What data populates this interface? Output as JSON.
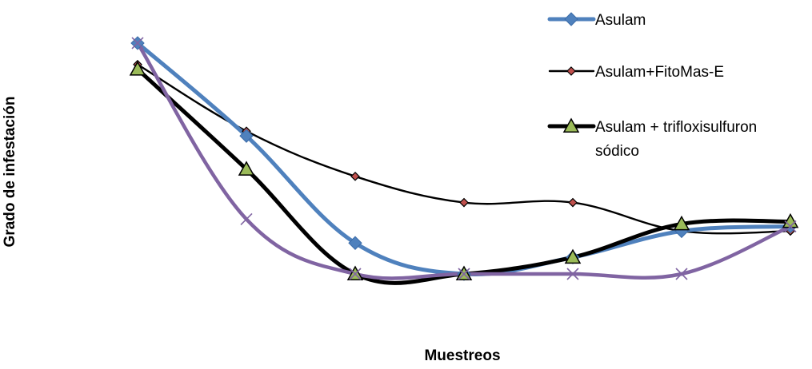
{
  "chart_data": {
    "type": "line",
    "title": "",
    "xlabel": "Muestreos",
    "ylabel": "Grado de infestación",
    "x": [
      1,
      2,
      3,
      4,
      5,
      6,
      7
    ],
    "ylim": [
      0,
      1
    ],
    "grid": false,
    "legend_position": "top-right",
    "series": [
      {
        "name": "Asulam",
        "values": [
          0.97,
          0.58,
          0.13,
          0.0,
          0.07,
          0.18,
          0.2
        ],
        "color": "#4F81BD",
        "marker": "diamond"
      },
      {
        "name": "Asulam+FitoMas-E",
        "values": [
          0.88,
          0.6,
          0.41,
          0.3,
          0.3,
          0.18,
          0.18
        ],
        "color": "#000000",
        "marker_fill": "#C0504D",
        "marker": "diamond-small"
      },
      {
        "name": "",
        "values": [
          0.86,
          0.44,
          0.0,
          0.0,
          0.07,
          0.21,
          0.22
        ],
        "color": "#000000",
        "marker_fill": "#9BBB59",
        "marker": "triangle"
      },
      {
        "name": "",
        "values": [
          0.97,
          0.23,
          0.0,
          0.0,
          0.0,
          0.0,
          0.2
        ],
        "color": "#8064A2",
        "marker": "x"
      }
    ],
    "legend": [
      {
        "series": 0,
        "label_lines": [
          "Asulam"
        ]
      },
      {
        "series": 1,
        "label_lines": [
          "Asulam+FitoMas-E"
        ]
      },
      {
        "series": 2,
        "label_lines": [
          "Asulam + trifloxisulfuron",
          "sódico"
        ]
      }
    ]
  }
}
